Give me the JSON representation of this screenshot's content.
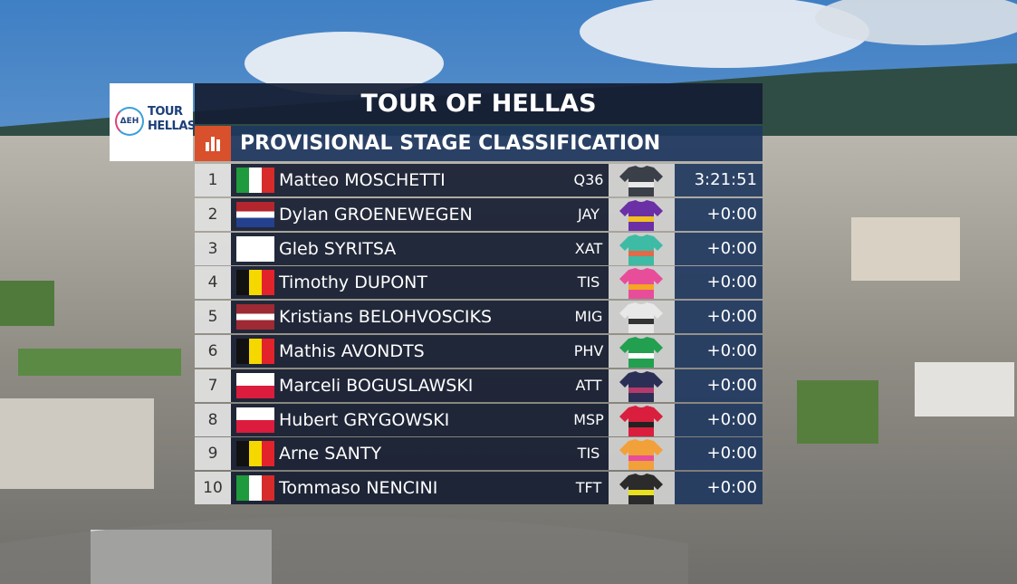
{
  "logo": {
    "sponsor": "ΔΕΗ",
    "line1": "TOUR",
    "line2": "HELLAS"
  },
  "header": {
    "title": "TOUR OF HELLAS",
    "subtitle": "PROVISIONAL STAGE CLASSIFICATION"
  },
  "table": {
    "rows": [
      {
        "rank": 1,
        "name": "Matteo MOSCHETTI",
        "team": "Q36",
        "time": "3:21:51"
      },
      {
        "rank": 2,
        "name": "Dylan GROENEWEGEN",
        "team": "JAY",
        "time": "+0:00"
      },
      {
        "rank": 3,
        "name": "Gleb SYRITSA",
        "team": "XAT",
        "time": "+0:00"
      },
      {
        "rank": 4,
        "name": "Timothy DUPONT",
        "team": "TIS",
        "time": "+0:00"
      },
      {
        "rank": 5,
        "name": "Kristians BELOHVOSCIKS",
        "team": "MIG",
        "time": "+0:00"
      },
      {
        "rank": 6,
        "name": "Mathis AVONDTS",
        "team": "PHV",
        "time": "+0:00"
      },
      {
        "rank": 7,
        "name": "Marceli BOGUSLAWSKI",
        "team": "ATT",
        "time": "+0:00"
      },
      {
        "rank": 8,
        "name": "Hubert GRYGOWSKI",
        "team": "MSP",
        "time": "+0:00"
      },
      {
        "rank": 9,
        "name": "Arne SANTY",
        "team": "TIS",
        "time": "+0:00"
      },
      {
        "rank": 10,
        "name": "Tommaso NENCINI",
        "team": "TFT",
        "time": "+0:00"
      }
    ]
  }
}
